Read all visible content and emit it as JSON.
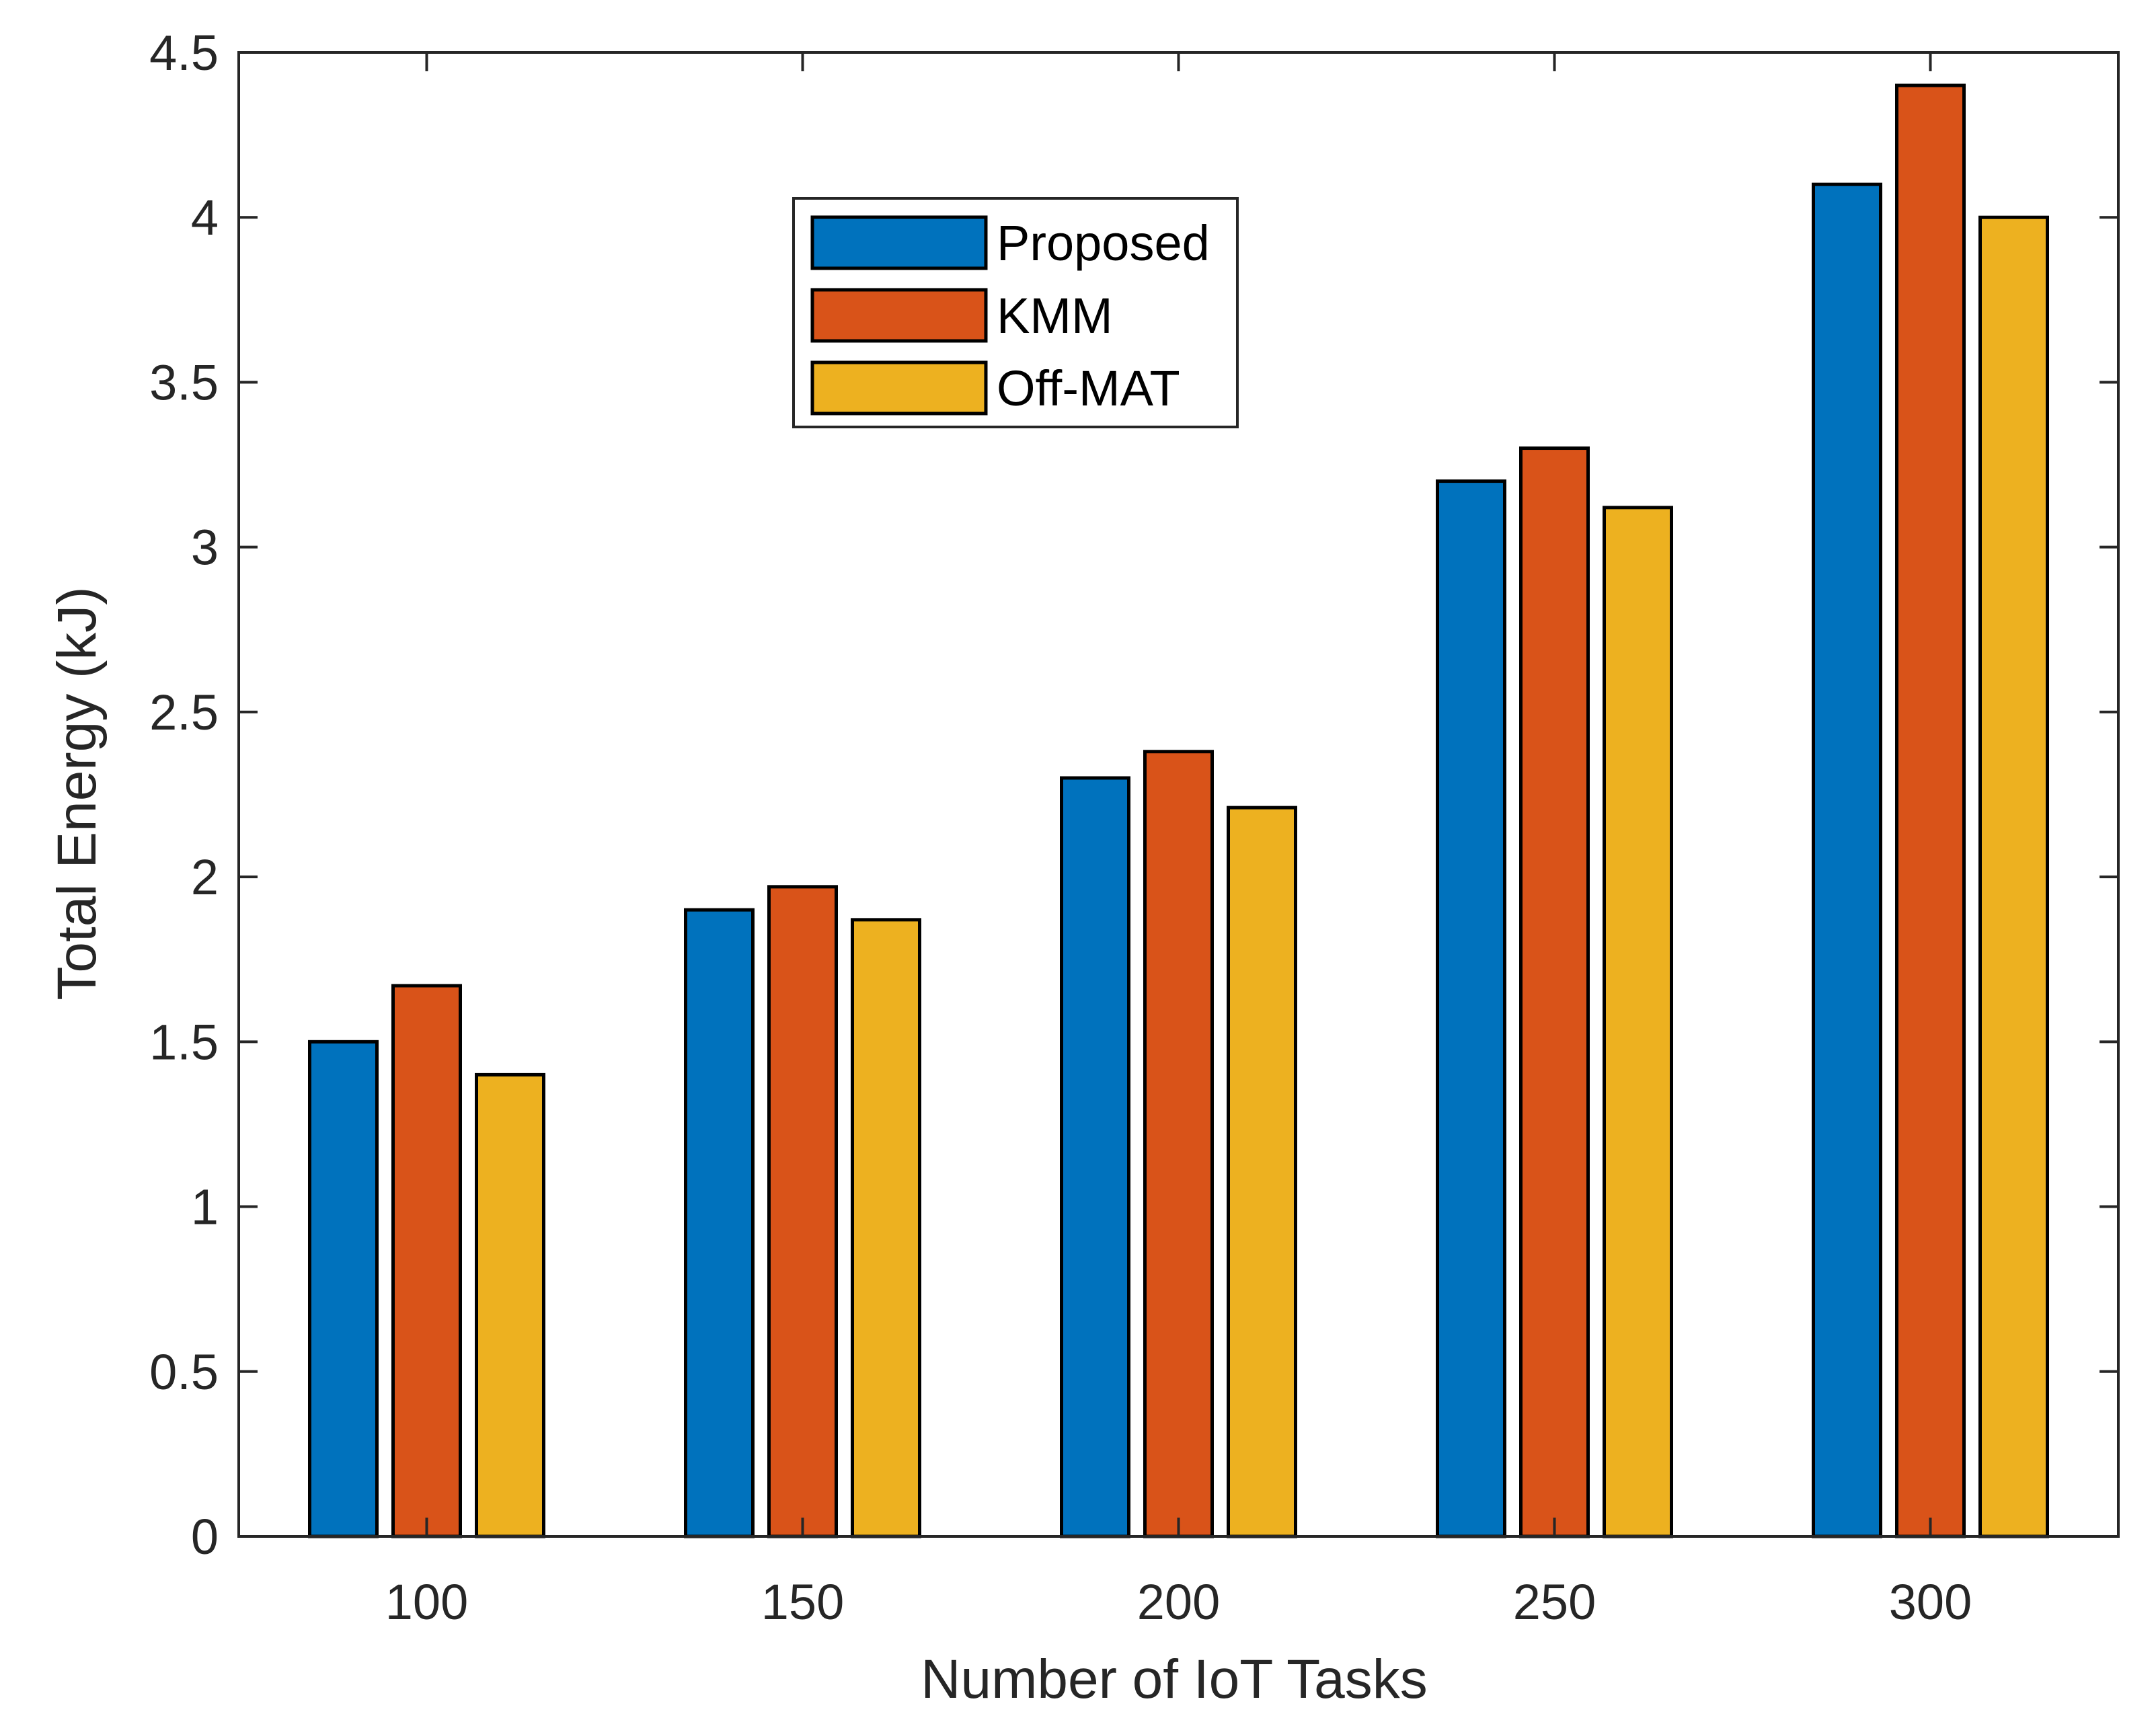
{
  "chart_data": {
    "type": "bar",
    "title": "",
    "xlabel": "Number of IoT Tasks",
    "ylabel": "Total Energy (kJ)",
    "categories": [
      "100",
      "150",
      "200",
      "250",
      "300"
    ],
    "ylim": [
      0,
      4.5
    ],
    "yticks": [
      0,
      0.5,
      1,
      1.5,
      2,
      2.5,
      3,
      3.5,
      4,
      4.5
    ],
    "ytick_labels": [
      "0",
      "0.5",
      "1",
      "1.5",
      "2",
      "2.5",
      "3",
      "3.5",
      "4",
      "4.5"
    ],
    "grid": false,
    "legend_position": "top-center",
    "series": [
      {
        "name": "Proposed",
        "color": "#0072BD",
        "values": [
          1.5,
          1.9,
          2.3,
          3.2,
          4.1
        ]
      },
      {
        "name": "KMM",
        "color": "#D95319",
        "values": [
          1.67,
          1.97,
          2.38,
          3.3,
          4.4
        ]
      },
      {
        "name": "Off-MAT",
        "color": "#EDB120",
        "values": [
          1.4,
          1.87,
          2.21,
          3.12,
          4.0
        ]
      }
    ]
  }
}
